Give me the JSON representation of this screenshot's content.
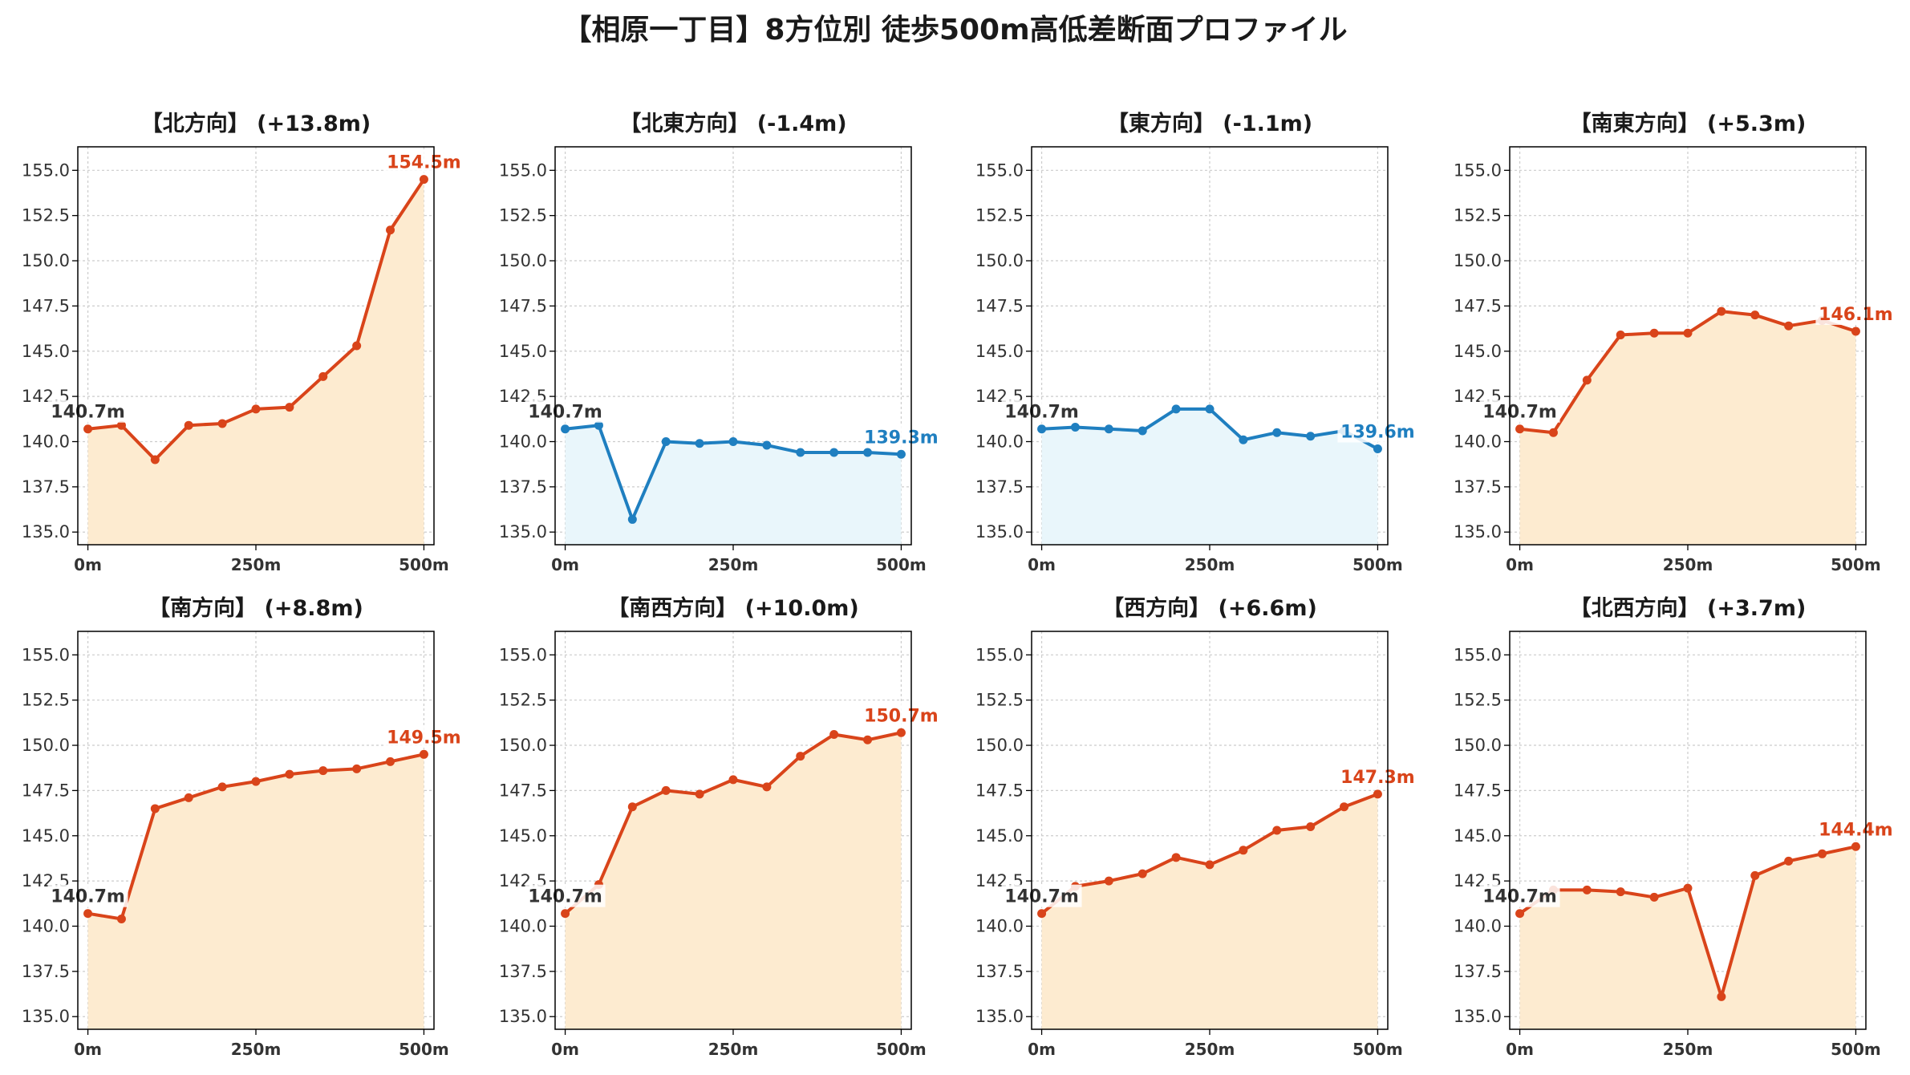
{
  "title": "【相原一丁目】8方位別 徒歩500m高低差断面プロファイル",
  "colors": {
    "up_line": "#d9441a",
    "up_fill": "#fdebd0",
    "down_line": "#1f7fc0",
    "down_fill": "#e9f6fb",
    "start_label": "#333333"
  },
  "chart_data": [
    {
      "type": "area",
      "title": "【北方向】 (+13.8m)",
      "trend": "up",
      "start_label": "140.7m",
      "end_label": "154.5m",
      "x": [
        0,
        50,
        100,
        150,
        200,
        250,
        300,
        350,
        400,
        450,
        500
      ],
      "values": [
        140.7,
        140.9,
        139.0,
        140.9,
        141.0,
        141.8,
        141.9,
        143.6,
        145.3,
        151.7,
        154.5
      ],
      "xticks": [
        "0m",
        "250m",
        "500m"
      ],
      "yticks": [
        "135.0",
        "137.5",
        "140.0",
        "142.5",
        "145.0",
        "147.5",
        "150.0",
        "152.5",
        "155.0"
      ],
      "ylim": [
        134.3,
        156.3
      ],
      "xlim": [
        -15,
        515
      ],
      "grid": true
    },
    {
      "type": "area",
      "title": "【北東方向】 (-1.4m)",
      "trend": "down",
      "start_label": "140.7m",
      "end_label": "139.3m",
      "x": [
        0,
        50,
        100,
        150,
        200,
        250,
        300,
        350,
        400,
        450,
        500
      ],
      "values": [
        140.7,
        140.9,
        135.7,
        140.0,
        139.9,
        140.0,
        139.8,
        139.4,
        139.4,
        139.4,
        139.3
      ],
      "xticks": [
        "0m",
        "250m",
        "500m"
      ],
      "yticks": [
        "135.0",
        "137.5",
        "140.0",
        "142.5",
        "145.0",
        "147.5",
        "150.0",
        "152.5",
        "155.0"
      ],
      "ylim": [
        134.3,
        156.3
      ],
      "xlim": [
        -15,
        515
      ],
      "grid": true
    },
    {
      "type": "area",
      "title": "【東方向】 (-1.1m)",
      "trend": "down",
      "start_label": "140.7m",
      "end_label": "139.6m",
      "x": [
        0,
        50,
        100,
        150,
        200,
        250,
        300,
        350,
        400,
        450,
        500
      ],
      "values": [
        140.7,
        140.8,
        140.7,
        140.6,
        141.8,
        141.8,
        140.1,
        140.5,
        140.3,
        140.6,
        139.6
      ],
      "xticks": [
        "0m",
        "250m",
        "500m"
      ],
      "yticks": [
        "135.0",
        "137.5",
        "140.0",
        "142.5",
        "145.0",
        "147.5",
        "150.0",
        "152.5",
        "155.0"
      ],
      "ylim": [
        134.3,
        156.3
      ],
      "xlim": [
        -15,
        515
      ],
      "grid": true
    },
    {
      "type": "area",
      "title": "【南東方向】 (+5.3m)",
      "trend": "up",
      "start_label": "140.7m",
      "end_label": "146.1m",
      "x": [
        0,
        50,
        100,
        150,
        200,
        250,
        300,
        350,
        400,
        450,
        500
      ],
      "values": [
        140.7,
        140.5,
        143.4,
        145.9,
        146.0,
        146.0,
        147.2,
        147.0,
        146.4,
        146.7,
        146.1
      ],
      "xticks": [
        "0m",
        "250m",
        "500m"
      ],
      "yticks": [
        "135.0",
        "137.5",
        "140.0",
        "142.5",
        "145.0",
        "147.5",
        "150.0",
        "152.5",
        "155.0"
      ],
      "ylim": [
        134.3,
        156.3
      ],
      "xlim": [
        -15,
        515
      ],
      "grid": true
    },
    {
      "type": "area",
      "title": "【南方向】 (+8.8m)",
      "trend": "up",
      "start_label": "140.7m",
      "end_label": "149.5m",
      "x": [
        0,
        50,
        100,
        150,
        200,
        250,
        300,
        350,
        400,
        450,
        500
      ],
      "values": [
        140.7,
        140.4,
        146.5,
        147.1,
        147.7,
        148.0,
        148.4,
        148.6,
        148.7,
        149.1,
        149.5
      ],
      "xticks": [
        "0m",
        "250m",
        "500m"
      ],
      "yticks": [
        "135.0",
        "137.5",
        "140.0",
        "142.5",
        "145.0",
        "147.5",
        "150.0",
        "152.5",
        "155.0"
      ],
      "ylim": [
        134.3,
        156.3
      ],
      "xlim": [
        -15,
        515
      ],
      "grid": true
    },
    {
      "type": "area",
      "title": "【南西方向】 (+10.0m)",
      "trend": "up",
      "start_label": "140.7m",
      "end_label": "150.7m",
      "x": [
        0,
        50,
        100,
        150,
        200,
        250,
        300,
        350,
        400,
        450,
        500
      ],
      "values": [
        140.7,
        142.3,
        146.6,
        147.5,
        147.3,
        148.1,
        147.7,
        149.4,
        150.6,
        150.3,
        150.7
      ],
      "xticks": [
        "0m",
        "250m",
        "500m"
      ],
      "yticks": [
        "135.0",
        "137.5",
        "140.0",
        "142.5",
        "145.0",
        "147.5",
        "150.0",
        "152.5",
        "155.0"
      ],
      "ylim": [
        134.3,
        156.3
      ],
      "xlim": [
        -15,
        515
      ],
      "grid": true
    },
    {
      "type": "area",
      "title": "【西方向】 (+6.6m)",
      "trend": "up",
      "start_label": "140.7m",
      "end_label": "147.3m",
      "x": [
        0,
        50,
        100,
        150,
        200,
        250,
        300,
        350,
        400,
        450,
        500
      ],
      "values": [
        140.7,
        142.2,
        142.5,
        142.9,
        143.8,
        143.4,
        144.2,
        145.3,
        145.5,
        146.6,
        147.3
      ],
      "xticks": [
        "0m",
        "250m",
        "500m"
      ],
      "yticks": [
        "135.0",
        "137.5",
        "140.0",
        "142.5",
        "145.0",
        "147.5",
        "150.0",
        "152.5",
        "155.0"
      ],
      "ylim": [
        134.3,
        156.3
      ],
      "xlim": [
        -15,
        515
      ],
      "grid": true
    },
    {
      "type": "area",
      "title": "【北西方向】 (+3.7m)",
      "trend": "up",
      "start_label": "140.7m",
      "end_label": "144.4m",
      "x": [
        0,
        50,
        100,
        150,
        200,
        250,
        300,
        350,
        400,
        450,
        500
      ],
      "values": [
        140.7,
        142.0,
        142.0,
        141.9,
        141.6,
        142.1,
        136.1,
        142.8,
        143.6,
        144.0,
        144.4
      ],
      "xticks": [
        "0m",
        "250m",
        "500m"
      ],
      "yticks": [
        "135.0",
        "137.5",
        "140.0",
        "142.5",
        "145.0",
        "147.5",
        "150.0",
        "152.5",
        "155.0"
      ],
      "ylim": [
        134.3,
        156.3
      ],
      "xlim": [
        -15,
        515
      ],
      "grid": true
    }
  ]
}
